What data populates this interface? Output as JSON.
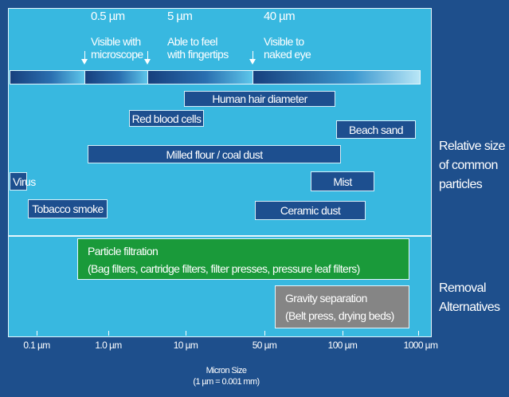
{
  "markers": [
    {
      "size": "0.5 µm",
      "line1": "Visible with",
      "line2": "microscope"
    },
    {
      "size": "5 µm",
      "line1": "Able to feel",
      "line2": "with fingertips"
    },
    {
      "size": "40 µm",
      "line1": "Visible to",
      "line2": "naked eye"
    }
  ],
  "particles": [
    {
      "label": "Human hair diameter"
    },
    {
      "label": "Red blood cells"
    },
    {
      "label": "Beach sand"
    },
    {
      "label": "Milled flour / coal dust"
    },
    {
      "label": "Virus"
    },
    {
      "label": "Mist"
    },
    {
      "label": "Tobacco smoke"
    },
    {
      "label": "Ceramic dust"
    }
  ],
  "removal": {
    "filtration": {
      "title": "Particle filtration",
      "detail": "(Bag filters, cartridge filters, filter presses, pressure leaf filters)"
    },
    "gravity": {
      "title": "Gravity separation",
      "detail": "(Belt press, drying beds)"
    }
  },
  "side_labels": {
    "particles": [
      "Relative size",
      "of common",
      "particles"
    ],
    "removal": [
      "Removal",
      "Alternatives"
    ]
  },
  "axis": {
    "ticks": [
      "0.1 µm",
      "1.0 µm",
      "10 µm",
      "50 µm",
      "100 µm",
      "1000 µm"
    ],
    "title_line1": "Micron Size",
    "title_line2": "(1 µm = 0.001 mm)"
  },
  "colors": {
    "background": "#1e4f8c",
    "panel": "#38b8e0",
    "particle_bar": "#1d4f8f",
    "filtration": "#1a9a3a",
    "gravity": "#858585"
  }
}
